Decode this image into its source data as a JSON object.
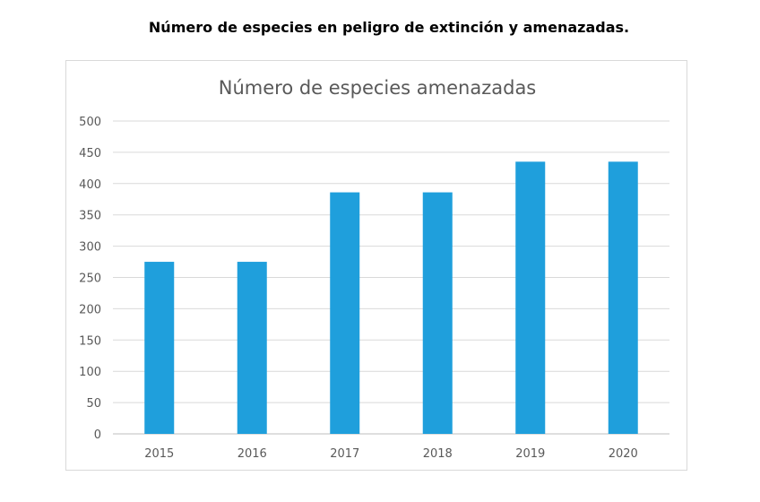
{
  "page": {
    "heading": "Número de especies en peligro de extinción y amenazadas."
  },
  "chart_data": {
    "type": "bar",
    "title": "Número de especies amenazadas",
    "categories": [
      "2015",
      "2016",
      "2017",
      "2018",
      "2019",
      "2020"
    ],
    "series": [
      {
        "name": "Número de especies amenazadas",
        "values": [
          275,
          275,
          386,
          386,
          435,
          435
        ],
        "color": "#1f9fdc"
      }
    ],
    "xlabel": "",
    "ylabel": "",
    "ylim": [
      0,
      500
    ],
    "yticks": [
      "0",
      "50",
      "100",
      "150",
      "200",
      "250",
      "300",
      "350",
      "400",
      "450",
      "500"
    ],
    "grid": true,
    "legend": "none"
  }
}
